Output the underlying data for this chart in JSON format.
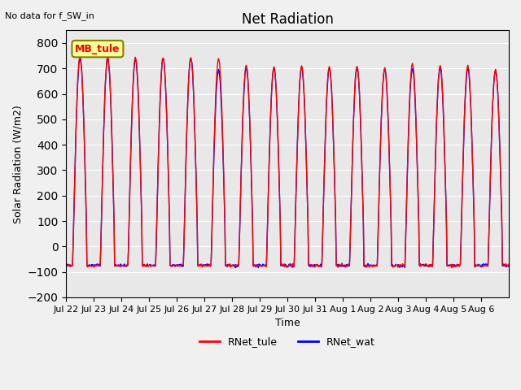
{
  "title": "Net Radiation",
  "top_left_text": "No data for f_SW_in",
  "ylabel": "Solar Radiation (W/m2)",
  "xlabel": "Time",
  "ylim": [
    -200,
    850
  ],
  "yticks": [
    -200,
    -100,
    0,
    100,
    200,
    300,
    400,
    500,
    600,
    700,
    800
  ],
  "xtick_labels": [
    "Jul 22",
    "Jul 23",
    "Jul 24",
    "Jul 25",
    "Jul 26",
    "Jul 27",
    "Jul 28",
    "Jul 29",
    "Jul 30",
    "Jul 31",
    "Aug 1",
    "Aug 2",
    "Aug 3",
    "Aug 4",
    "Aug 5",
    "Aug 6"
  ],
  "legend_label1": "RNet_tule",
  "legend_label2": "RNet_wat",
  "color_tule": "#FF0000",
  "color_wat": "#0000FF",
  "inset_label": "MB_tule",
  "background_color": "#E8E8E8",
  "n_days": 16,
  "night_val": -75,
  "day_peaks_tule": [
    750,
    745,
    742,
    740,
    742,
    740,
    710,
    705,
    710,
    708,
    710,
    700,
    718,
    712,
    712,
    695
  ],
  "day_peaks_wat": [
    740,
    738,
    735,
    742,
    742,
    695,
    700,
    700,
    705,
    700,
    700,
    698,
    700,
    700,
    700,
    693
  ]
}
